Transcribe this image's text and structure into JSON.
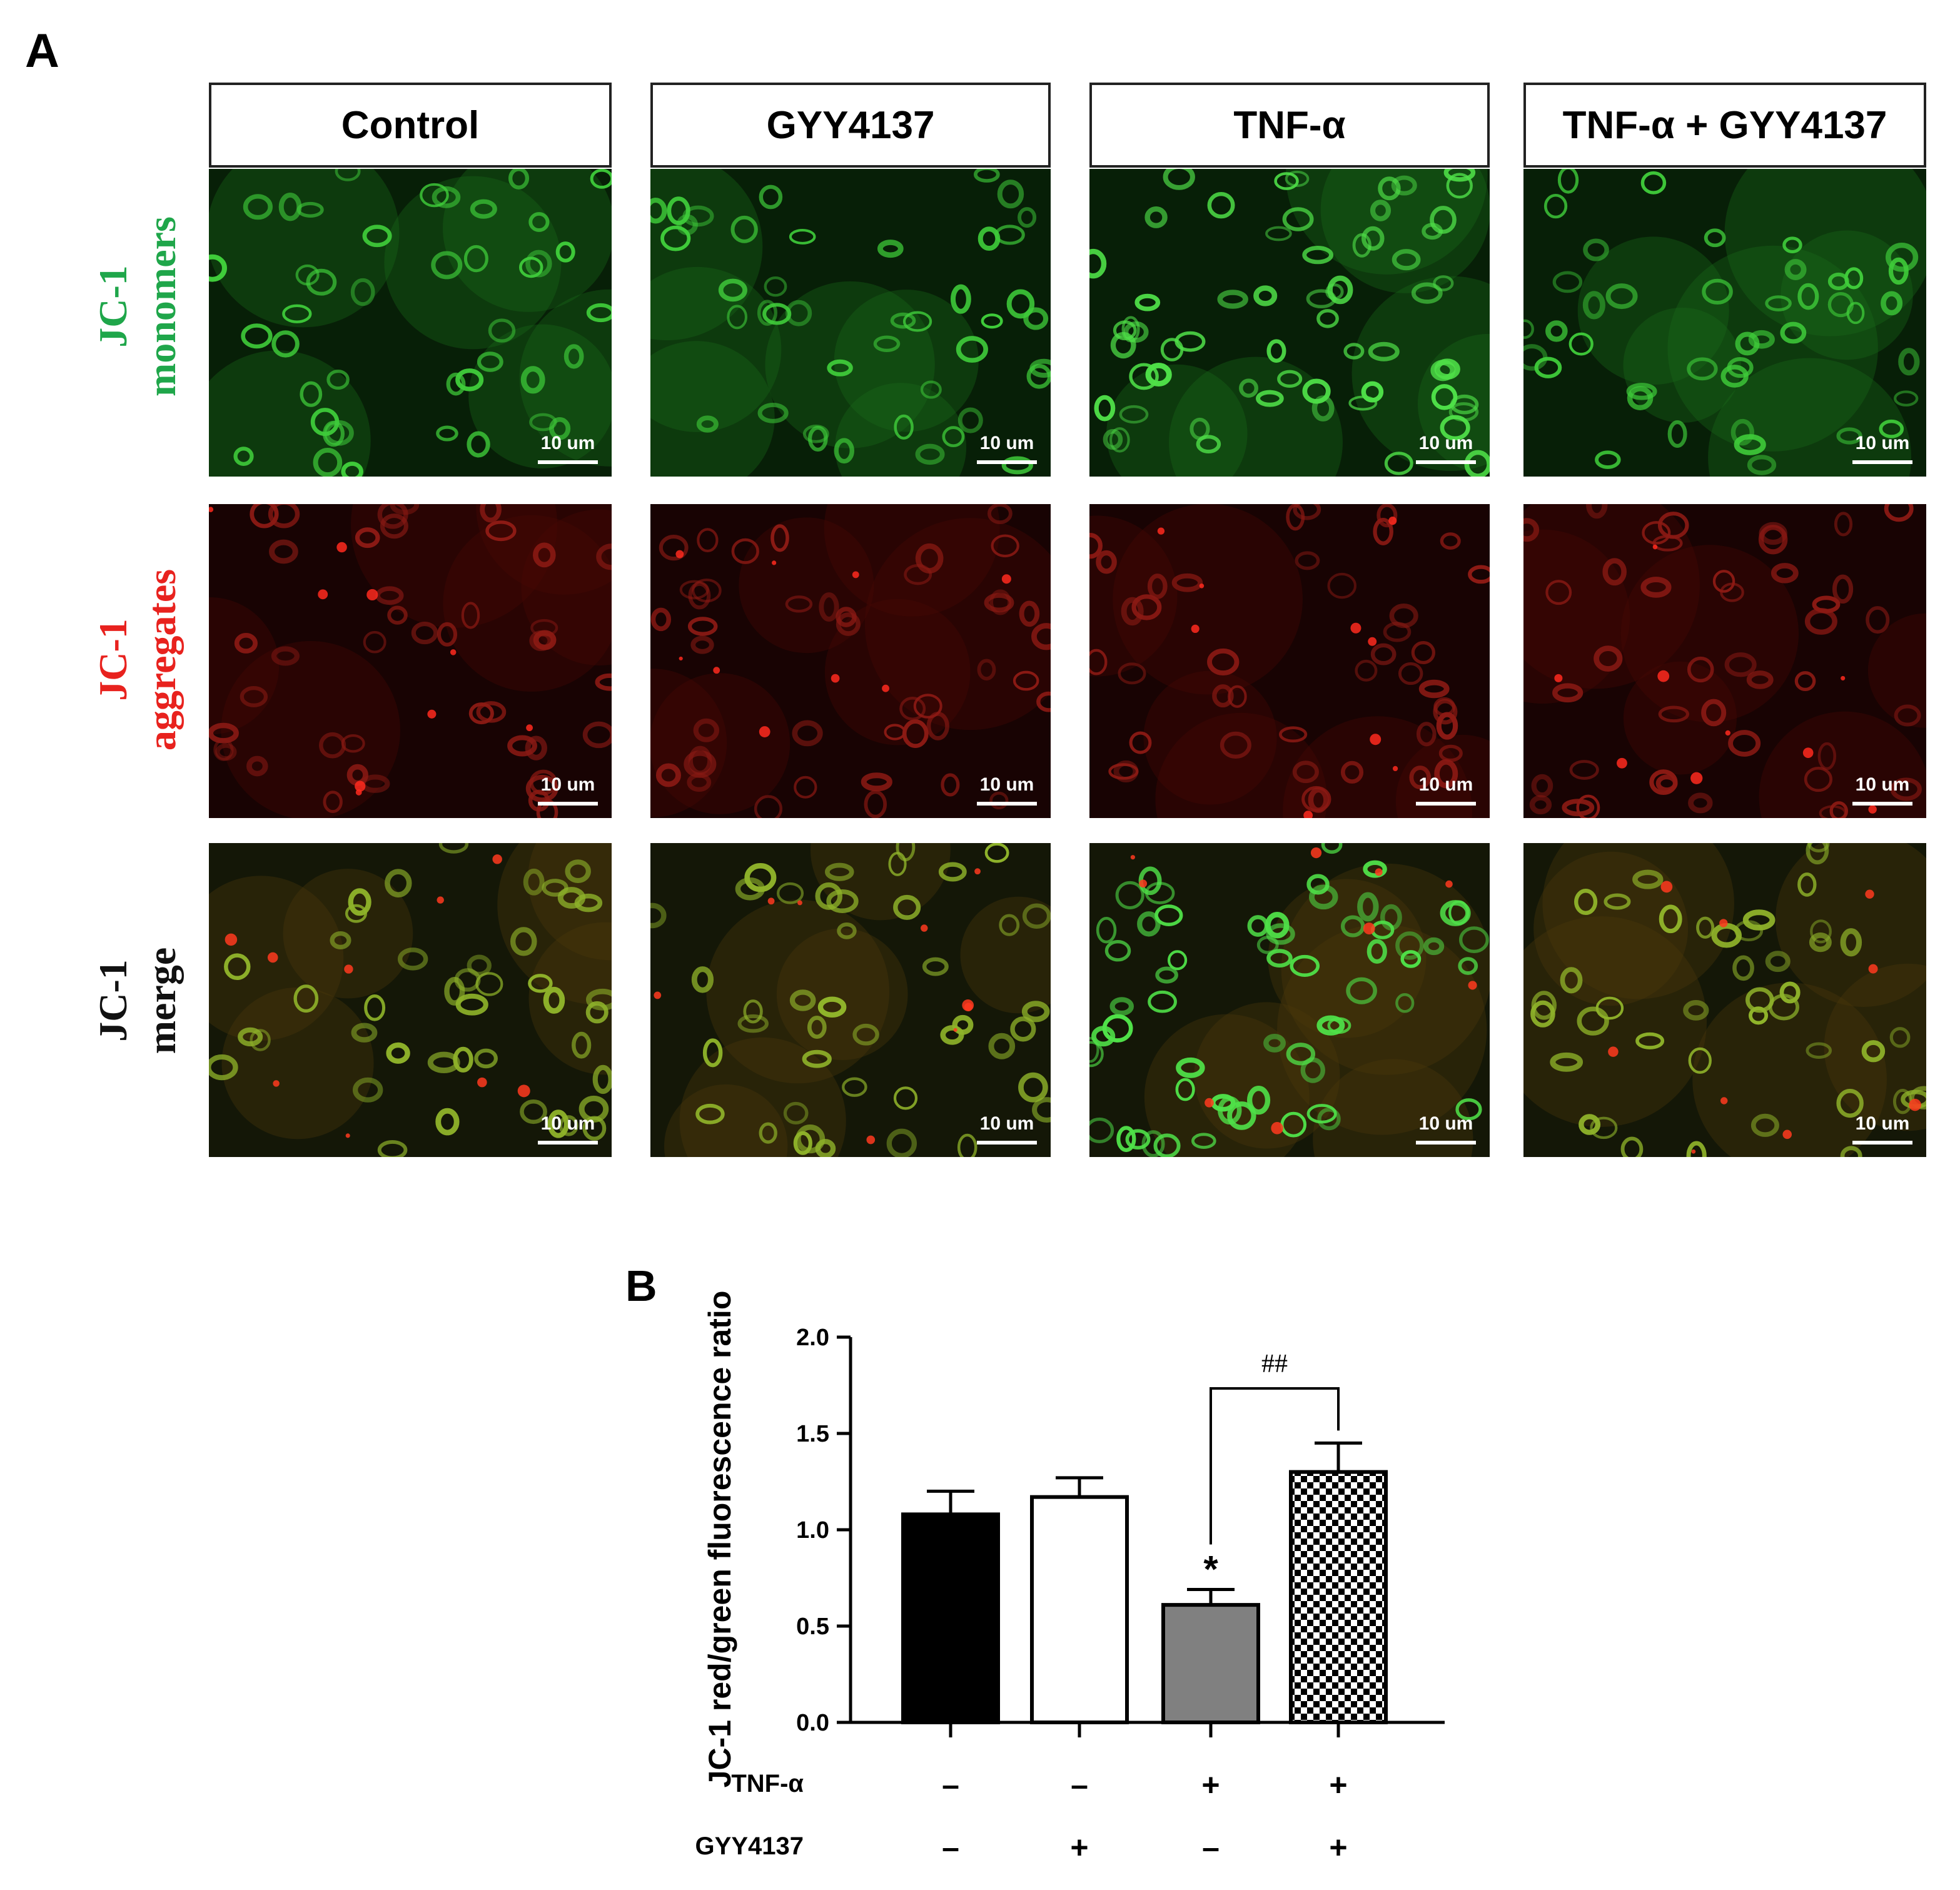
{
  "panel_a_label": "A",
  "panel_b_label": "B",
  "columns": [
    {
      "label": "Control"
    },
    {
      "label": "GYY4137"
    },
    {
      "label": "TNF-α"
    },
    {
      "label": "TNF-α + GYY4137"
    }
  ],
  "rows": [
    {
      "line1": "JC-1",
      "line2": "monomers",
      "color": "#1fa64a",
      "tone": "green"
    },
    {
      "line1": "JC-1",
      "line2": "aggregates",
      "color": "#e8221e",
      "tone": "red"
    },
    {
      "line1": "JC-1",
      "line2": "merge",
      "color": "#111111",
      "tone": "merge"
    }
  ],
  "scale_bar_label": "10 um",
  "chart_data": {
    "type": "bar",
    "categories": [
      "Control",
      "GYY4137",
      "TNF-α",
      "TNF-α + GYY4137"
    ],
    "values": [
      1.08,
      1.17,
      0.61,
      1.3
    ],
    "errors": [
      0.12,
      0.1,
      0.08,
      0.15
    ],
    "bar_fills": [
      "#000000",
      "#ffffff",
      "#808080",
      "checker"
    ],
    "ylabel": "JC-1 red/green fluorescence ratio",
    "ylim": [
      0,
      2.0
    ],
    "yticks": [
      "0.0",
      "0.5",
      "1.0",
      "1.5",
      "2.0"
    ],
    "significance": {
      "star": "*",
      "star_index": 2,
      "bracket_label": "##",
      "bracket_between": [
        2,
        3
      ]
    },
    "treatment_table": [
      {
        "label": "TNF-α",
        "values": [
          "–",
          "–",
          "+",
          "+"
        ]
      },
      {
        "label": "GYY4137",
        "values": [
          "–",
          "+",
          "–",
          "+"
        ]
      }
    ]
  }
}
